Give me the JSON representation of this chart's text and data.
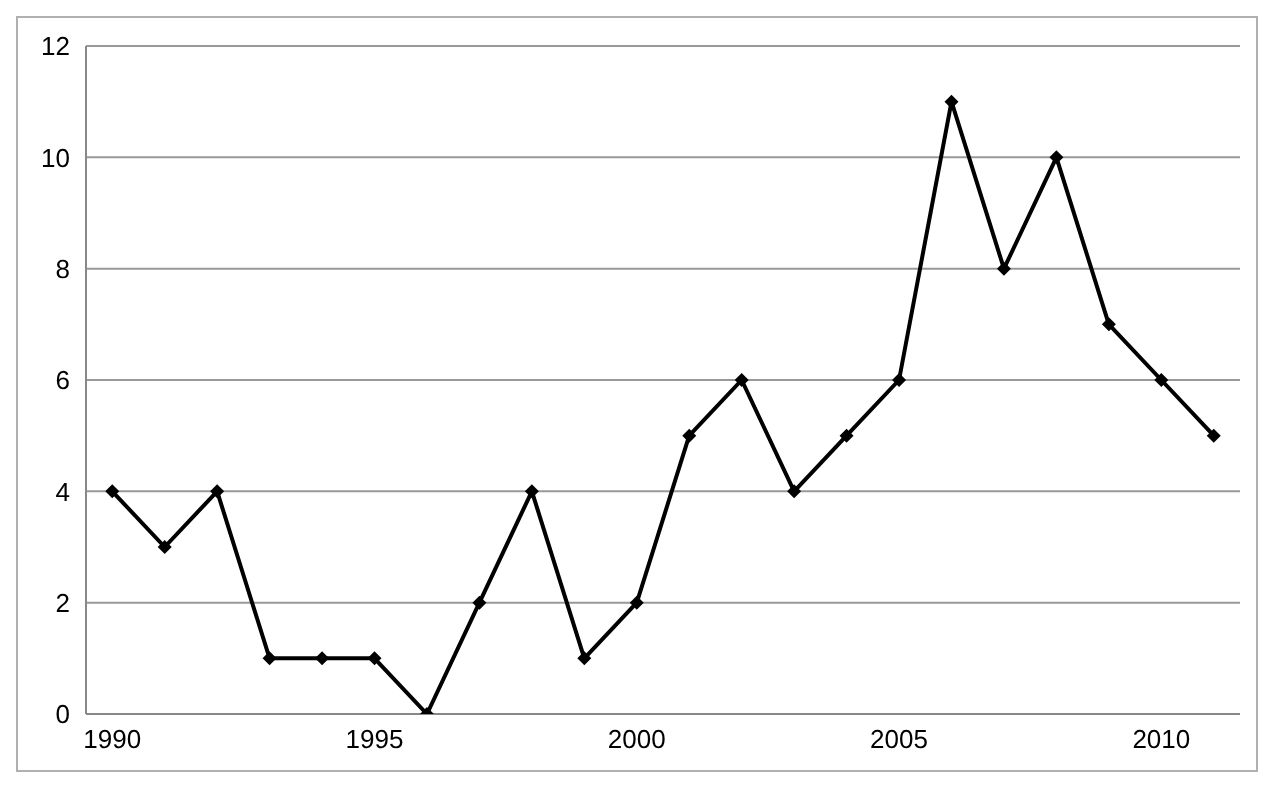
{
  "chart_data": {
    "type": "line",
    "x": [
      1990,
      1991,
      1992,
      1993,
      1994,
      1995,
      1996,
      1997,
      1998,
      1999,
      2000,
      2001,
      2002,
      2003,
      2004,
      2005,
      2006,
      2007,
      2008,
      2009,
      2010,
      2011
    ],
    "series": [
      {
        "color": "#000000",
        "values": [
          4,
          3,
          4,
          1,
          1,
          1,
          0,
          2,
          4,
          1,
          2,
          5,
          6,
          4,
          5,
          6,
          11,
          8,
          10,
          7,
          6,
          5
        ]
      }
    ],
    "xlim": [
      1989.5,
      2011.5
    ],
    "xticks": [
      1990,
      1995,
      2000,
      2005,
      2010
    ],
    "ylim": [
      0,
      12
    ],
    "yticks": [
      0,
      2,
      4,
      6,
      8,
      10,
      12
    ],
    "grid": "y",
    "marker": "diamond",
    "line_style": "solid"
  }
}
